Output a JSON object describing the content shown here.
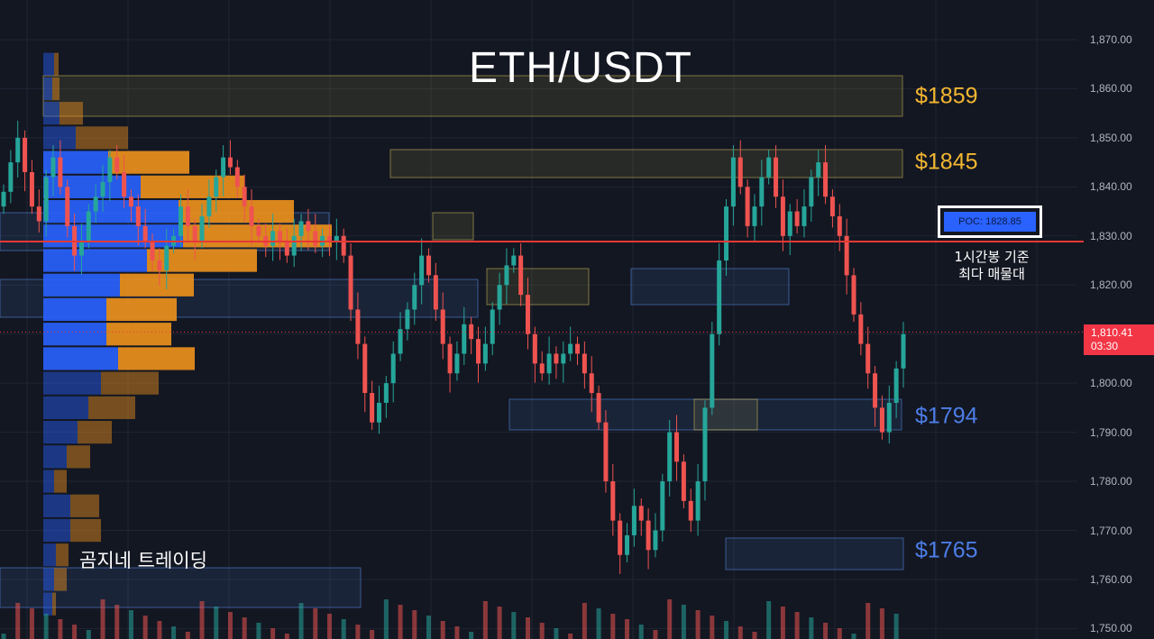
{
  "title": "ETH/USDT",
  "watermark": "곰지네 트레이딩",
  "price_axis": {
    "ticks": [
      "1,870.00",
      "1,860.00",
      "1,850.00",
      "1,840.00",
      "1,830.00",
      "1,820.00",
      "1,810.00",
      "1,800.00",
      "1,790.00",
      "1,780.00",
      "1,770.00",
      "1,760.00",
      "1,750.00"
    ]
  },
  "current_price": {
    "value": "1,810.41",
    "countdown": "03:30",
    "color": "#f23645"
  },
  "poc": {
    "label": "POC: 1828.85",
    "price": 1828.85,
    "note_line1": "1시간봉 기준",
    "note_line2": "최다 매물대",
    "line_color": "#e53935"
  },
  "levels": [
    {
      "label": "$1859",
      "price": 1859,
      "color": "#f5b731"
    },
    {
      "label": "$1845",
      "price": 1845,
      "color": "#f5b731"
    },
    {
      "label": "$1794",
      "price": 1794,
      "color": "#4d7ee8"
    },
    {
      "label": "$1765",
      "price": 1765,
      "color": "#4d7ee8"
    }
  ],
  "colors": {
    "background": "#131722",
    "up": "#26a69a",
    "down": "#ef5350",
    "vp_buy": "#2962ff",
    "vp_sell": "#f0921c"
  },
  "chart_data": {
    "type": "candlestick",
    "title": "ETH/USDT",
    "ylim": [
      1748,
      1873
    ],
    "y_ticks": [
      1750,
      1760,
      1770,
      1780,
      1790,
      1800,
      1810,
      1820,
      1830,
      1840,
      1850,
      1860,
      1870
    ],
    "close_series": [
      1839,
      1845,
      1850,
      1843,
      1836,
      1833,
      1842,
      1846,
      1840,
      1832,
      1826,
      1829,
      1835,
      1838,
      1841,
      1846,
      1843,
      1838,
      1836,
      1832,
      1829,
      1825,
      1823,
      1828,
      1830,
      1836,
      1832,
      1829,
      1834,
      1838,
      1842,
      1846,
      1844,
      1840,
      1836,
      1832,
      1830,
      1828,
      1831,
      1829,
      1826,
      1830,
      1833,
      1831,
      1828,
      1830,
      1829,
      1830,
      1826,
      1815,
      1808,
      1798,
      1792,
      1796,
      1800,
      1806,
      1811,
      1815,
      1820,
      1826,
      1822,
      1815,
      1808,
      1802,
      1806,
      1812,
      1809,
      1804,
      1808,
      1815,
      1820,
      1824,
      1826,
      1818,
      1810,
      1804,
      1802,
      1806,
      1804,
      1806,
      1808,
      1806,
      1802,
      1798,
      1792,
      1780,
      1772,
      1765,
      1769,
      1775,
      1772,
      1766,
      1770,
      1780,
      1790,
      1784,
      1776,
      1772,
      1780,
      1795,
      1810,
      1825,
      1836,
      1846,
      1840,
      1832,
      1836,
      1842,
      1846,
      1838,
      1830,
      1835,
      1832,
      1836,
      1842,
      1845,
      1838,
      1834,
      1830,
      1822,
      1814,
      1808,
      1802,
      1795,
      1790,
      1796,
      1803,
      1810
    ],
    "volume_profile": [
      {
        "price": 1865,
        "buy": 12,
        "sell": 5
      },
      {
        "price": 1860,
        "buy": 10,
        "sell": 8
      },
      {
        "price": 1855,
        "buy": 18,
        "sell": 26
      },
      {
        "price": 1850,
        "buy": 36,
        "sell": 58
      },
      {
        "price": 1845,
        "buy": 72,
        "sell": 90
      },
      {
        "price": 1840,
        "buy": 108,
        "sell": 115
      },
      {
        "price": 1835,
        "buy": 150,
        "sell": 128
      },
      {
        "price": 1830,
        "buy": 155,
        "sell": 165
      },
      {
        "price": 1825,
        "buy": 115,
        "sell": 122
      },
      {
        "price": 1820,
        "buy": 85,
        "sell": 82
      },
      {
        "price": 1815,
        "buy": 70,
        "sell": 78
      },
      {
        "price": 1810,
        "buy": 70,
        "sell": 72
      },
      {
        "price": 1805,
        "buy": 83,
        "sell": 85
      },
      {
        "price": 1800,
        "buy": 64,
        "sell": 64
      },
      {
        "price": 1795,
        "buy": 50,
        "sell": 52
      },
      {
        "price": 1790,
        "buy": 38,
        "sell": 38
      },
      {
        "price": 1785,
        "buy": 26,
        "sell": 26
      },
      {
        "price": 1780,
        "buy": 12,
        "sell": 14
      },
      {
        "price": 1775,
        "buy": 30,
        "sell": 32
      },
      {
        "price": 1770,
        "buy": 30,
        "sell": 34
      },
      {
        "price": 1765,
        "buy": 14,
        "sell": 14
      },
      {
        "price": 1760,
        "buy": 12,
        "sell": 14
      },
      {
        "price": 1755,
        "buy": 10,
        "sell": 4
      }
    ]
  }
}
